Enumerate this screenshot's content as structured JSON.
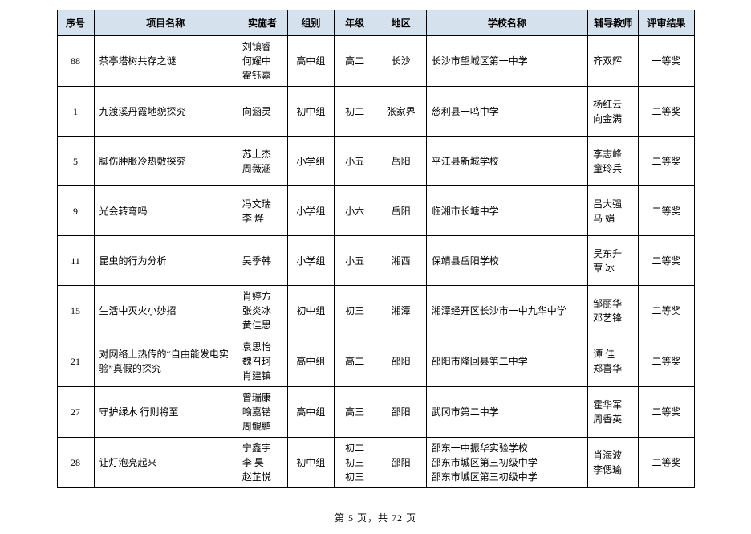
{
  "headers": {
    "seq": "序号",
    "project": "项目名称",
    "implementer": "实施者",
    "group": "组别",
    "grade": "年级",
    "region": "地区",
    "school": "学校名称",
    "tutor": "辅导教师",
    "result": "评审结果"
  },
  "rows": [
    {
      "seq": "88",
      "project": "茶亭塔树共存之谜",
      "implementer": "刘镇睿\n何耀中\n霍钰嘉",
      "group": "高中组",
      "grade": "高二",
      "region": "长沙",
      "school": "长沙市望城区第一中学",
      "tutor": "齐双辉",
      "result": "一等奖"
    },
    {
      "seq": "1",
      "project": "九渡溪丹霞地貌探究",
      "implementer": "向涵灵",
      "group": "初中组",
      "grade": "初二",
      "region": "张家界",
      "school": "慈利县一鸣中学",
      "tutor": "杨红云\n向金满",
      "result": "二等奖"
    },
    {
      "seq": "5",
      "project": "脚伤肿胀冷热敷探究",
      "implementer": "苏上杰\n周薇涵",
      "group": "小学组",
      "grade": "小五",
      "region": "岳阳",
      "school": "平江县新城学校",
      "tutor": "李志峰\n童玲兵",
      "result": "二等奖"
    },
    {
      "seq": "9",
      "project": "光会转弯吗",
      "implementer": "冯文瑞\n李  烨",
      "group": "小学组",
      "grade": "小六",
      "region": "岳阳",
      "school": "临湘市长塘中学",
      "tutor": "吕大强\n马  娟",
      "result": "二等奖"
    },
    {
      "seq": "11",
      "project": "昆虫的行为分析",
      "implementer": "吴季韩",
      "group": "小学组",
      "grade": "小五",
      "region": "湘西",
      "school": "保靖县岳阳学校",
      "tutor": "吴东升\n覃  冰",
      "result": "二等奖"
    },
    {
      "seq": "15",
      "project": "生活中灭火小妙招",
      "implementer": "肖婷方\n张炎冰\n黄佳思",
      "group": "初中组",
      "grade": "初三",
      "region": "湘潭",
      "school": "湘潭经开区长沙市一中九华中学",
      "tutor": "邹丽华\n邓艺锋",
      "result": "二等奖"
    },
    {
      "seq": "21",
      "project": "对网络上热传的“自由能发电实验”真假的探究",
      "implementer": "袁思怡\n魏召珂\n肖建镇",
      "group": "高中组",
      "grade": "高二",
      "region": "邵阳",
      "school": "邵阳市隆回县第二中学",
      "tutor": "谭  佳\n郑喜华",
      "result": "二等奖"
    },
    {
      "seq": "27",
      "project": "守护绿水 行则将至",
      "implementer": "曾瑞康\n喻嘉锴\n周鲲鹏",
      "group": "高中组",
      "grade": "高三",
      "region": "邵阳",
      "school": "武冈市第二中学",
      "tutor": "霍华军\n周香英",
      "result": "二等奖"
    },
    {
      "seq": "28",
      "project": "让灯泡亮起来",
      "implementer": "宁鑫宇\n李  昊\n赵芷悦",
      "group": "初中组",
      "grade": "初二\n初三\n初三",
      "region": "邵阳",
      "school": "邵东一中振华实验学校\n邵东市城区第三初级中学\n邵东市城区第三初级中学",
      "tutor": "肖海波\n李偲瑜",
      "result": "二等奖"
    }
  ],
  "pager": {
    "text": "第 5 页，共 72 页"
  }
}
